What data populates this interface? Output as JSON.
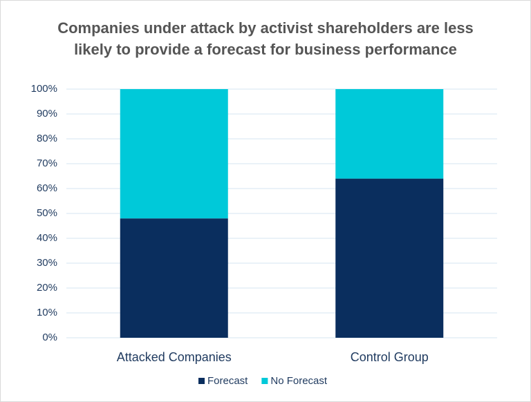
{
  "chart_data": {
    "type": "stacked_bar",
    "title": "Companies under attack by activist shareholders are less likely to provide a forecast for business performance",
    "categories": [
      "Attacked Companies",
      "Control Group"
    ],
    "series": [
      {
        "name": "Forecast",
        "color": "#0a2e5e",
        "values": [
          48,
          64
        ]
      },
      {
        "name": "No Forecast",
        "color": "#00c9d9",
        "values": [
          52,
          36
        ]
      }
    ],
    "ylim": [
      0,
      100
    ],
    "yticks": [
      {
        "value": 0,
        "label": "0%"
      },
      {
        "value": 10,
        "label": "10%"
      },
      {
        "value": 20,
        "label": "20%"
      },
      {
        "value": 30,
        "label": "30%"
      },
      {
        "value": 40,
        "label": "40%"
      },
      {
        "value": 50,
        "label": "50%"
      },
      {
        "value": 60,
        "label": "60%"
      },
      {
        "value": 70,
        "label": "70%"
      },
      {
        "value": 80,
        "label": "80%"
      },
      {
        "value": 90,
        "label": "90%"
      },
      {
        "value": 100,
        "label": "100%"
      }
    ],
    "grid": true,
    "legend": "bottom"
  }
}
